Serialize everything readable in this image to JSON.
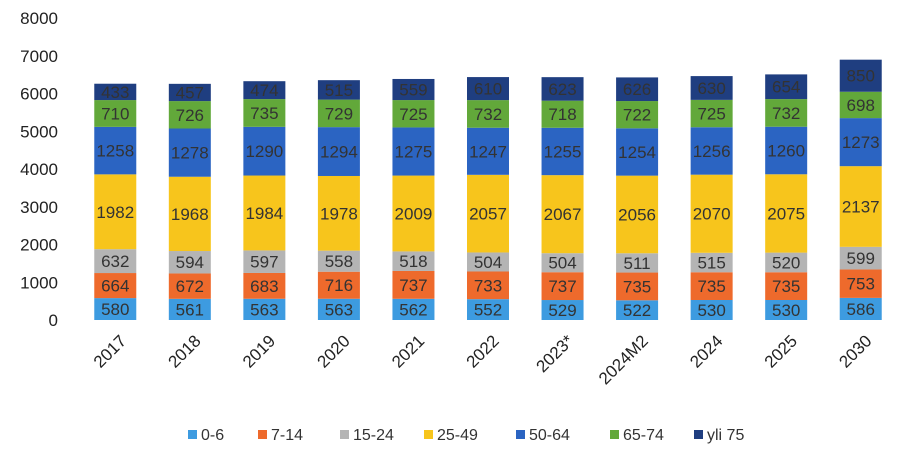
{
  "chart_data": {
    "type": "bar",
    "stacked": true,
    "title": "",
    "xlabel": "",
    "ylabel": "",
    "ylim": [
      0,
      8000
    ],
    "yticks": [
      "0",
      "1000",
      "2000",
      "3000",
      "4000",
      "5000",
      "6000",
      "7000",
      "8000"
    ],
    "categories": [
      "2017",
      "2018",
      "2019",
      "2020",
      "2021",
      "2022",
      "2023*",
      "2024M2",
      "2024",
      "2025",
      "2030"
    ],
    "grid": false,
    "legend_position": "bottom",
    "series": [
      {
        "name": "0-6",
        "color": "#3d9be0",
        "values": [
          580,
          561,
          563,
          563,
          562,
          552,
          529,
          522,
          530,
          530,
          586
        ]
      },
      {
        "name": "7-14",
        "color": "#ee6a2c",
        "values": [
          664,
          672,
          683,
          716,
          737,
          733,
          737,
          735,
          735,
          735,
          753
        ]
      },
      {
        "name": "15-24",
        "color": "#b4b4b4",
        "values": [
          632,
          594,
          597,
          558,
          518,
          504,
          504,
          511,
          515,
          520,
          599
        ]
      },
      {
        "name": "25-49",
        "color": "#f7c51c",
        "values": [
          1982,
          1968,
          1984,
          1978,
          2009,
          2057,
          2067,
          2056,
          2070,
          2075,
          2137
        ]
      },
      {
        "name": "50-64",
        "color": "#2b64c2",
        "values": [
          1258,
          1278,
          1290,
          1294,
          1275,
          1247,
          1255,
          1254,
          1256,
          1260,
          1273
        ]
      },
      {
        "name": "65-74",
        "color": "#62a83a",
        "values": [
          710,
          726,
          735,
          729,
          725,
          732,
          718,
          722,
          725,
          732,
          698
        ]
      },
      {
        "name": "yli 75",
        "color": "#1f3e80",
        "values": [
          433,
          457,
          474,
          515,
          559,
          610,
          623,
          626,
          630,
          654,
          850
        ]
      }
    ]
  }
}
